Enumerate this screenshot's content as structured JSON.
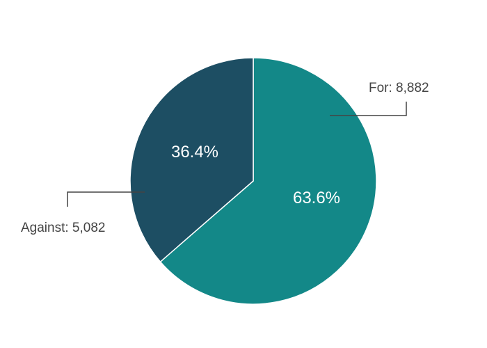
{
  "chart_data": {
    "type": "pie",
    "title": "",
    "categories": [
      "For",
      "Against"
    ],
    "values": [
      8882,
      5082
    ],
    "percent_labels": [
      "63.6%",
      "36.4%"
    ],
    "value_labels": [
      "8,882",
      "5,082"
    ],
    "colors": [
      "#138888",
      "#1d4e63"
    ],
    "slice_border_color": "#ffffff",
    "label_text_color": "#444444",
    "legend": "none"
  }
}
